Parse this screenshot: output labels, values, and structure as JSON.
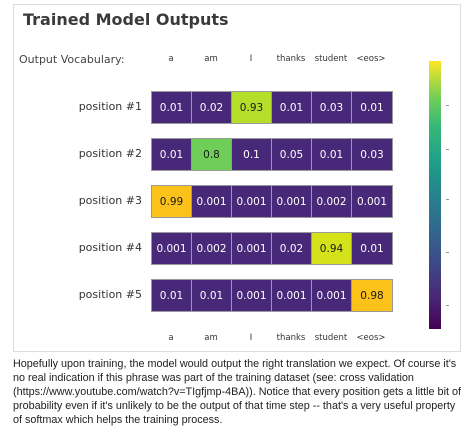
{
  "title": "Trained Model Outputs",
  "vocab_label": "Output Vocabulary:",
  "vocab": [
    "a",
    "am",
    "I",
    "thanks",
    "student",
    "<eos>"
  ],
  "rows": [
    {
      "label": "position #1",
      "values": [
        "0.01",
        "0.02",
        "0.93",
        "0.01",
        "0.03",
        "0.01"
      ]
    },
    {
      "label": "position #2",
      "values": [
        "0.01",
        "0.8",
        "0.1",
        "0.05",
        "0.01",
        "0.03"
      ]
    },
    {
      "label": "position #3",
      "values": [
        "0.99",
        "0.001",
        "0.001",
        "0.001",
        "0.002",
        "0.001"
      ]
    },
    {
      "label": "position #4",
      "values": [
        "0.001",
        "0.002",
        "0.001",
        "0.02",
        "0.94",
        "0.01"
      ]
    },
    {
      "label": "position #5",
      "values": [
        "0.01",
        "0.01",
        "0.001",
        "0.001",
        "0.001",
        "0.98"
      ]
    }
  ],
  "colors": {
    "low": "#482878",
    "mid_green": "#6ece58",
    "high_green": "#b5de2b",
    "yellow_green": "#d4e21a",
    "gold": "#fbc21a"
  },
  "caption": "Hopefully upon training, the model would output the right translation we expect. Of course it's no real indication if this phrase was part of the training dataset (see: cross validation (https://www.youtube.com/watch?v=TIgfjmp-4BA)). Notice that every position gets a little bit of probability even if it's unlikely to be the output of that time step -- that's a very useful property of softmax which helps the training process."
}
